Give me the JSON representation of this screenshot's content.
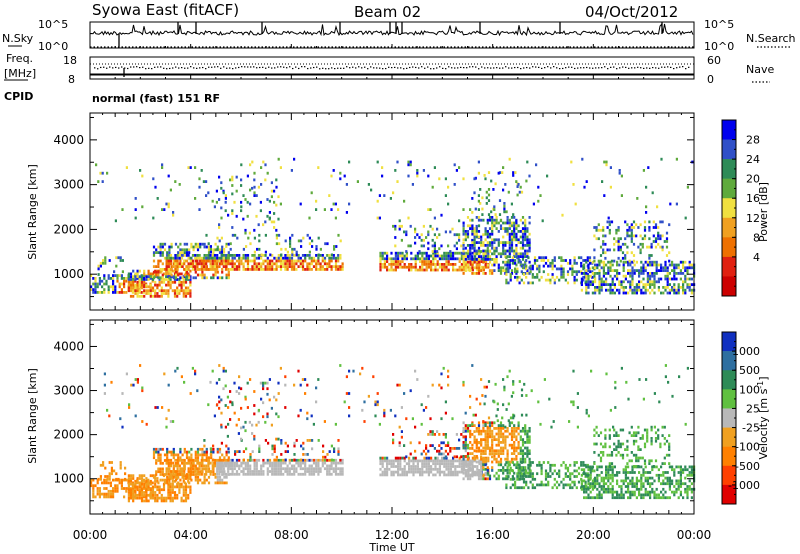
{
  "header": {
    "title_left": "Syowa East (fitACF)",
    "title_center": "Beam 02",
    "title_right": "04/Oct/2012",
    "cpid_label": "CPID",
    "cpid_value": "normal (fast) 151 RF"
  },
  "strip_panels": {
    "nsky_label": "N.Sky",
    "nsearch_label": "N.Search",
    "nsky_ticks": [
      "10^5",
      "10^0"
    ],
    "nsearch_ticks": [
      "10^5",
      "10^0"
    ],
    "freq_label_1": "Freq.",
    "freq_label_2": "[MHz]",
    "freq_ticks": [
      "18",
      "8"
    ],
    "nave_label": "Nave",
    "nave_ticks": [
      "60",
      "0"
    ]
  },
  "chart_data": [
    {
      "type": "heatmap",
      "name": "power-panel",
      "ylabel": "Slant Range [km]",
      "y_ticks": [
        "1000",
        "2000",
        "3000",
        "4000"
      ],
      "ylim": [
        200,
        4600
      ],
      "colorbar_label": "Power [dB]",
      "colorbar_ticks": [
        "4",
        "8",
        "12",
        "16",
        "20",
        "24",
        "28"
      ],
      "colorbar_colors": [
        "#0000ee",
        "#3050c8",
        "#2e8b57",
        "#5faa3c",
        "#f0e040",
        "#f0a020",
        "#ee7000",
        "#e02010",
        "#cc0000"
      ]
    },
    {
      "type": "heatmap",
      "name": "velocity-panel",
      "ylabel": "Slant Range [km]",
      "y_ticks": [
        "1000",
        "2000",
        "3000",
        "4000"
      ],
      "ylim": [
        200,
        4600
      ],
      "xlabel": "Time UT",
      "x_ticks": [
        "00:00",
        "04:00",
        "08:00",
        "12:00",
        "16:00",
        "20:00",
        "00:00"
      ],
      "xlim_hours": [
        0,
        24
      ],
      "colorbar_label": "Velocity [m s^-1]",
      "colorbar_ticks": [
        "1000",
        "500",
        "100",
        "25",
        "-25",
        "-100",
        "-500",
        "-1000"
      ],
      "colorbar_colors": [
        "#1030c0",
        "#2e6fa0",
        "#2e8b57",
        "#60c040",
        "#b8b8b8",
        "#f0a020",
        "#ff8000",
        "#ff4000",
        "#e00000"
      ]
    }
  ]
}
